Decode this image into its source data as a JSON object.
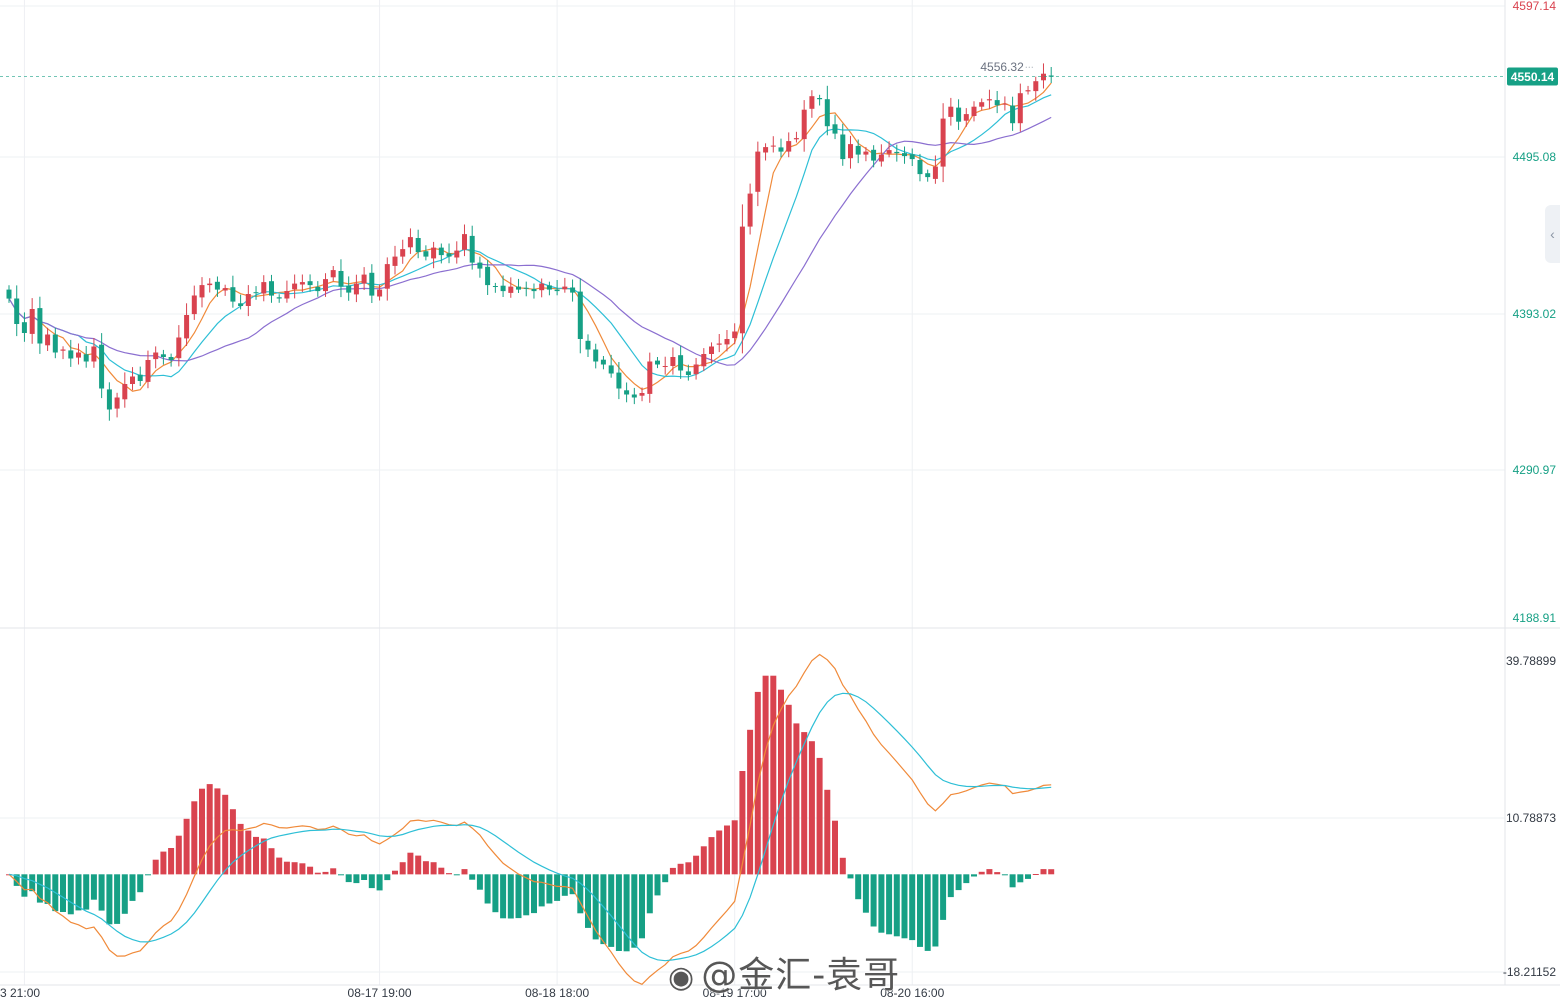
{
  "colors": {
    "up": "#d9434f",
    "down": "#16a085",
    "ma_fast": "#f08a3a",
    "ma_mid": "#2ebfd6",
    "ma_slow": "#8b6fd0",
    "dif": "#f08a3a",
    "dea": "#2ebfd6",
    "grid": "#eef0f3",
    "axis_text": "#16a085",
    "axis_top_text": "#d9434f",
    "last_price_bg": "#16a085"
  },
  "watermark": {
    "icon": "weibo-icon",
    "text": "@金汇-袁哥"
  },
  "side_handle": {
    "icon": "chevron-left-icon",
    "glyph": "‹"
  },
  "chart_data": [
    {
      "type": "candlestick",
      "title": "",
      "y_axis_ticks": [
        "4597.14",
        "4495.08",
        "4393.02",
        "4290.97",
        "4188.91"
      ],
      "ylim": [
        4188.91,
        4597.14
      ],
      "last_price": "4550.14",
      "high_annotation": "4556.32",
      "x_ticks": [
        {
          "label": "3 21:00",
          "index": 2
        },
        {
          "label": "08-17 19:00",
          "index": 48
        },
        {
          "label": "08-18 18:00",
          "index": 71
        },
        {
          "label": "08-19 17:00",
          "index": 94
        },
        {
          "label": "08-20 16:00",
          "index": 117
        }
      ],
      "closes": [
        4402,
        4385,
        4379,
        4395,
        4372,
        4378,
        4366,
        4368,
        4362,
        4366,
        4360,
        4370,
        4342,
        4328,
        4336,
        4345,
        4350,
        4347,
        4361,
        4366,
        4363,
        4361,
        4376,
        4391,
        4404,
        4411,
        4412,
        4408,
        4409,
        4400,
        4397,
        4405,
        4406,
        4413,
        4404,
        4402,
        4407,
        4412,
        4413,
        4411,
        4407,
        4415,
        4421,
        4410,
        4406,
        4412,
        4418,
        4404,
        4408,
        4425,
        4430,
        4435,
        4443,
        4433,
        4430,
        4436,
        4431,
        4430,
        4434,
        4445,
        4426,
        4422,
        4411,
        4410,
        4407,
        4410,
        4408,
        4409,
        4407,
        4412,
        4408,
        4407,
        4410,
        4406,
        4375,
        4368,
        4360,
        4358,
        4352,
        4342,
        4338,
        4336,
        4339,
        4360,
        4358,
        4357,
        4363,
        4354,
        4351,
        4358,
        4365,
        4370,
        4372,
        4375,
        4380,
        4450,
        4472,
        4500,
        4503,
        4504,
        4500,
        4507,
        4509,
        4528,
        4537,
        4535,
        4517,
        4512,
        4495,
        4505,
        4498,
        4500,
        4494,
        4498,
        4501,
        4499,
        4497,
        4495,
        4485,
        4483,
        4490,
        4522,
        4530,
        4520,
        4525,
        4530,
        4533,
        4535,
        4531,
        4532,
        4519,
        4539,
        4541,
        4547,
        4552,
        4550
      ],
      "ma_series": [
        {
          "key": "ma_fast",
          "period": 5
        },
        {
          "key": "ma_mid",
          "period": 10
        },
        {
          "key": "ma_slow",
          "period": 20
        }
      ]
    },
    {
      "type": "bar+line",
      "title": "",
      "y_axis_ticks": [
        "39.78899",
        "10.78873",
        "-18.21152"
      ],
      "ylim": [
        -18.21152,
        39.78899
      ],
      "series": [
        {
          "key": "dif",
          "type": "line"
        },
        {
          "key": "dea",
          "type": "line"
        },
        {
          "key": "histogram",
          "type": "bar"
        }
      ]
    }
  ]
}
